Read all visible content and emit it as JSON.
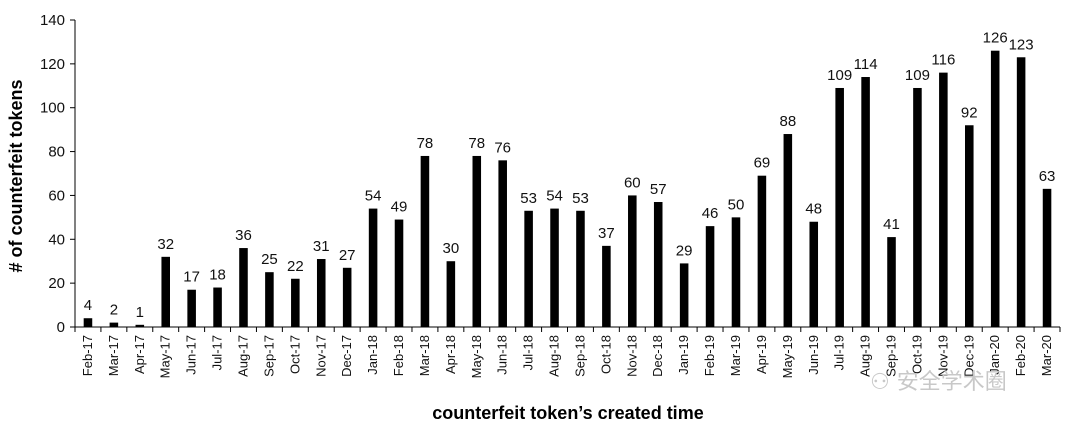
{
  "chart_data": {
    "type": "bar",
    "xlabel": "counterfeit token’s created time",
    "ylabel": "# of counterfeit tokens",
    "ylim": [
      0,
      140
    ],
    "yticks": [
      0,
      20,
      40,
      60,
      80,
      100,
      120,
      140
    ],
    "grid": false,
    "bar_color": "#000000",
    "categories": [
      "Feb-17",
      "Mar-17",
      "Apr-17",
      "May-17",
      "Jun-17",
      "Jul-17",
      "Aug-17",
      "Sep-17",
      "Oct-17",
      "Nov-17",
      "Dec-17",
      "Jan-18",
      "Feb-18",
      "Mar-18",
      "Apr-18",
      "May-18",
      "Jun-18",
      "Jul-18",
      "Aug-18",
      "Sep-18",
      "Oct-18",
      "Nov-18",
      "Dec-18",
      "Jan-19",
      "Feb-19",
      "Mar-19",
      "Apr-19",
      "May-19",
      "Jun-19",
      "Jul-19",
      "Aug-19",
      "Sep-19",
      "Oct-19",
      "Nov-19",
      "Dec-19",
      "Jan-20",
      "Feb-20",
      "Mar-20"
    ],
    "values": [
      4,
      2,
      1,
      32,
      17,
      18,
      36,
      25,
      22,
      31,
      27,
      54,
      49,
      78,
      30,
      78,
      76,
      53,
      54,
      53,
      37,
      60,
      57,
      29,
      46,
      50,
      69,
      88,
      48,
      109,
      114,
      41,
      109,
      116,
      92,
      126,
      123,
      63
    ]
  },
  "watermark": {
    "text": "安全学术圈",
    "icon": "wechat-icon"
  }
}
